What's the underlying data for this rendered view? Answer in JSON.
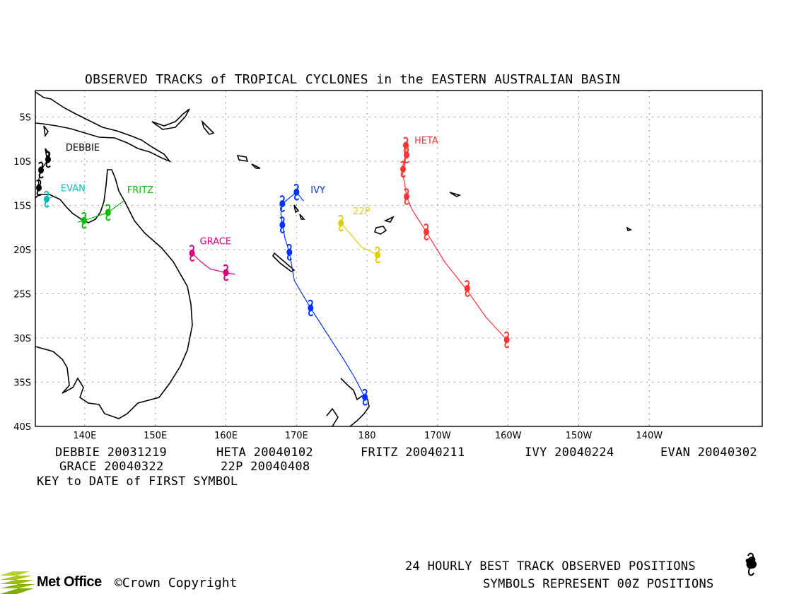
{
  "title": "OBSERVED TRACKS of TROPICAL CYCLONES in the EASTERN AUSTRALIAN BASIN",
  "lat_labels": [
    "5S",
    "10S",
    "15S",
    "20S",
    "25S",
    "30S",
    "35S",
    "40S"
  ],
  "lon_labels": [
    "140E",
    "150E",
    "160E",
    "170E",
    "180",
    "170W",
    "160W",
    "150W",
    "140W"
  ],
  "storms": [
    {
      "name": "DEBBIE",
      "color": "#000000",
      "label": "DEBBIE",
      "track": [
        [
          134.8,
          -9.8
        ],
        [
          134.3,
          -10.4
        ],
        [
          133.8,
          -11.0
        ],
        [
          133.5,
          -12.0
        ],
        [
          133.4,
          -13.0
        ]
      ],
      "symbols": [
        [
          134.8,
          -9.8
        ],
        [
          133.8,
          -11.0
        ],
        [
          133.5,
          -13.0
        ]
      ]
    },
    {
      "name": "EVAN",
      "color": "#00bfbf",
      "label": "EVAN",
      "track": [
        [
          135.5,
          -14.0
        ],
        [
          134.6,
          -14.3
        ]
      ],
      "symbols": [
        [
          134.6,
          -14.3
        ]
      ]
    },
    {
      "name": "FRITZ",
      "color": "#00c000",
      "label": "FRITZ",
      "track": [
        [
          145.5,
          -14.5
        ],
        [
          143.3,
          -15.8
        ],
        [
          139.9,
          -16.7
        ],
        [
          139.0,
          -16.9
        ]
      ],
      "symbols": [
        [
          143.3,
          -15.8
        ],
        [
          139.9,
          -16.7
        ]
      ]
    },
    {
      "name": "GRACE",
      "color": "#e0007f",
      "label": "GRACE",
      "track": [
        [
          155.2,
          -20.4
        ],
        [
          156.5,
          -21.4
        ],
        [
          157.8,
          -22.2
        ],
        [
          160.0,
          -22.6
        ],
        [
          161.3,
          -22.8
        ]
      ],
      "symbols": [
        [
          155.2,
          -20.4
        ],
        [
          160.0,
          -22.6
        ]
      ]
    },
    {
      "name": "IVY",
      "color": "#0033ff",
      "label": "IVY",
      "track": [
        [
          171.0,
          -14.5
        ],
        [
          170.0,
          -13.5
        ],
        [
          168.0,
          -14.8
        ],
        [
          167.8,
          -15.9
        ],
        [
          168.0,
          -17.2
        ],
        [
          168.4,
          -18.8
        ],
        [
          169.0,
          -20.3
        ],
        [
          169.7,
          -23.5
        ],
        [
          172.0,
          -26.6
        ],
        [
          176.6,
          -32.3
        ],
        [
          178.2,
          -34.4
        ],
        [
          179.7,
          -36.7
        ],
        [
          179.7,
          -36.9
        ]
      ],
      "symbols": [
        [
          170.0,
          -13.5
        ],
        [
          168.0,
          -14.8
        ],
        [
          168.0,
          -17.2
        ],
        [
          169.0,
          -20.3
        ],
        [
          172.0,
          -26.6
        ],
        [
          179.7,
          -36.7
        ]
      ]
    },
    {
      "name": "22P",
      "color": "#e0d000",
      "label": "22P",
      "track": [
        [
          176.3,
          -17.0
        ],
        [
          177.2,
          -17.8
        ],
        [
          179.2,
          -19.7
        ],
        [
          181.5,
          -20.6
        ]
      ],
      "symbols": [
        [
          176.3,
          -17.0
        ],
        [
          181.5,
          -20.6
        ]
      ]
    },
    {
      "name": "HETA",
      "color": "#ff3333",
      "label": "HETA",
      "track": [
        [
          185.5,
          -8.2
        ],
        [
          185.5,
          -9.3
        ],
        [
          185.1,
          -10.3
        ],
        [
          185.0,
          -11.2
        ],
        [
          185.3,
          -12.4
        ],
        [
          185.6,
          -14.0
        ],
        [
          186.4,
          -15.5
        ],
        [
          188.4,
          -18.0
        ],
        [
          191.0,
          -21.4
        ],
        [
          194.0,
          -24.4
        ],
        [
          196.8,
          -27.6
        ],
        [
          199.8,
          -30.2
        ]
      ],
      "symbols": [
        [
          185.5,
          -8.2
        ],
        [
          185.6,
          -9.3
        ],
        [
          185.1,
          -10.9
        ],
        [
          185.6,
          -14.0
        ],
        [
          188.4,
          -18.0
        ],
        [
          194.2,
          -24.4
        ],
        [
          199.8,
          -30.2
        ]
      ]
    }
  ],
  "key": [
    {
      "text": "DEBBIE 20031219"
    },
    {
      "text": "HETA 20040102"
    },
    {
      "text": "FRITZ 20040211"
    },
    {
      "text": "IVY 20040224"
    },
    {
      "text": "EVAN 20040302"
    },
    {
      "text": "GRACE 20040322"
    },
    {
      "text": "22P 20040408"
    }
  ],
  "key_note": "KEY to DATE of FIRST SYMBOL",
  "footer": {
    "line1": "24 HOURLY BEST TRACK OBSERVED POSITIONS",
    "line2": "SYMBOLS REPRESENT 00Z POSITIONS",
    "logo": "Met Office",
    "copyright": "©Crown Copyright"
  },
  "icons": {
    "cyclone": "cyclone-symbol-icon",
    "logo": "met-office-logo-icon"
  }
}
